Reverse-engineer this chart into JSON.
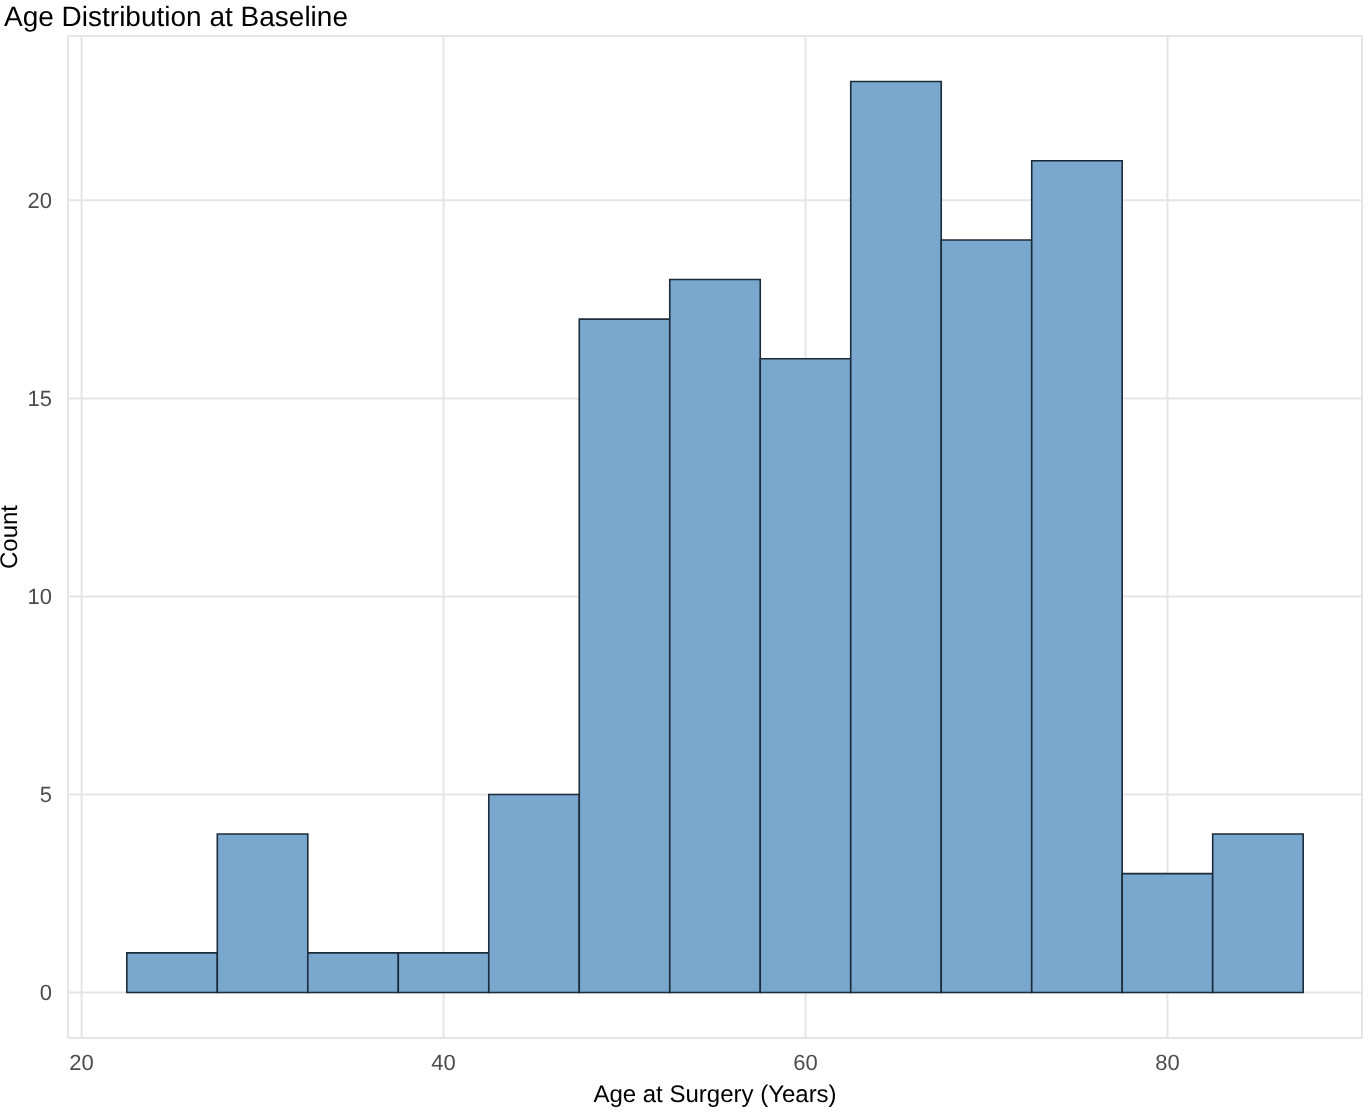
{
  "chart_data": {
    "type": "histogram",
    "title": "Age Distribution at Baseline",
    "xlabel": "Age at Surgery (Years)",
    "ylabel": "Count",
    "bins": [
      22.5,
      27.5,
      32.5,
      37.5,
      42.5,
      47.5,
      52.5,
      57.5,
      62.5,
      67.5,
      72.5,
      77.5,
      82.5,
      87.5
    ],
    "values": [
      1,
      4,
      1,
      1,
      5,
      17,
      18,
      16,
      23,
      19,
      21,
      3,
      4
    ],
    "color": "#79a7cd",
    "xlim": [
      19.25,
      90.75
    ],
    "xticks": [
      20,
      40,
      60,
      80
    ],
    "ylim": [
      -1.15,
      24.15
    ],
    "yticks": [
      0,
      5,
      10,
      15,
      20
    ],
    "grid": true
  }
}
